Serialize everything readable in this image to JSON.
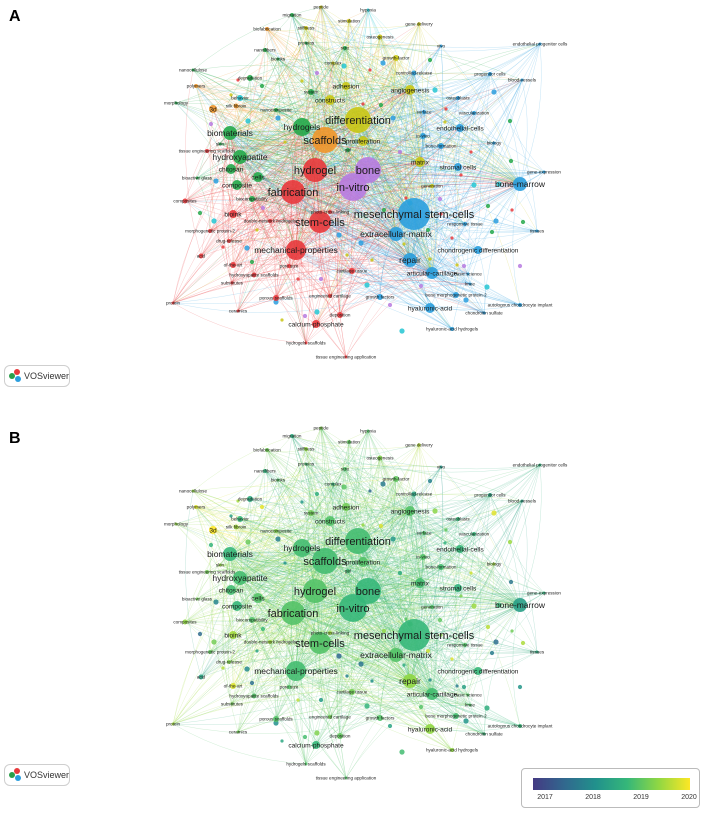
{
  "panel_a": {
    "letter": "A"
  },
  "panel_b": {
    "letter": "B"
  },
  "badge": {
    "label": "VOSviewer"
  },
  "legend": {
    "ticks": [
      "2017",
      "2018",
      "2019",
      "2020"
    ],
    "colormap": [
      "#443a83",
      "#31688e",
      "#21918c",
      "#35b779",
      "#90d743",
      "#fde725"
    ]
  },
  "cluster_colors": {
    "red": "#e8393c",
    "green": "#24a84a",
    "blue": "#2a9ede",
    "yellow": "#c9c614",
    "purple": "#b77be0",
    "cyan": "#23c5d2",
    "orange": "#f0962a"
  },
  "nodes": [
    {
      "label": "hypoxia",
      "c": "cyan",
      "yr": 2019.0
    },
    {
      "label": "peptide",
      "c": "yellow",
      "yr": 2019.3
    },
    {
      "label": "migration",
      "c": "green",
      "yr": 2018.6
    },
    {
      "label": "stimulation",
      "c": "yellow",
      "yr": 2019.1
    },
    {
      "label": "gene delivery",
      "c": "yellow",
      "yr": 2019.6
    },
    {
      "label": "stiffness",
      "c": "yellow",
      "yr": 2019.4
    },
    {
      "label": "biofabrication",
      "c": "orange",
      "yr": 2019.2
    },
    {
      "label": "osteogenesis",
      "c": "yellow",
      "yr": 2019.3
    },
    {
      "label": "vivo",
      "c": "blue",
      "yr": 2018.3
    },
    {
      "label": "proteins",
      "c": "green",
      "yr": 2018.9
    },
    {
      "label": "endothelial progenitor cells",
      "c": "blue",
      "yr": 2018.7
    },
    {
      "label": "size",
      "c": "green",
      "yr": 2019.0
    },
    {
      "label": "nanofibers",
      "c": "green",
      "yr": 2018.7
    },
    {
      "label": "bioinks",
      "c": "green",
      "yr": 2019.0
    },
    {
      "label": "complex",
      "c": "yellow",
      "yr": 2018.8
    },
    {
      "label": "growth-factor",
      "c": "yellow",
      "yr": 2019.1
    },
    {
      "label": "nanocellulose",
      "c": "green",
      "yr": 2019.4
    },
    {
      "label": "controlled-release",
      "c": "blue",
      "yr": 2018.5
    },
    {
      "label": "progenitor cells",
      "c": "blue",
      "yr": 2018.5
    },
    {
      "label": "polymers",
      "c": "orange",
      "yr": 2019.8
    },
    {
      "label": "degradation",
      "c": "green",
      "yr": 2018.6
    },
    {
      "label": "adhesion",
      "c": "yellow",
      "yr": 2019.2
    },
    {
      "label": "blood-vessels",
      "c": "blue",
      "yr": 2018.4
    },
    {
      "label": "system",
      "c": "green",
      "yr": 2019.2
    },
    {
      "label": "behavior",
      "c": "cyan",
      "yr": 2018.8
    },
    {
      "label": "angiogenesis",
      "c": "yellow",
      "yr": 2019.0
    },
    {
      "label": "osteoblasts",
      "c": "blue",
      "yr": 2018.8
    },
    {
      "label": "morphology",
      "c": "green",
      "yr": 2019.4
    },
    {
      "label": "3d",
      "c": "orange",
      "yr": 2020.0
    },
    {
      "label": "silk fibroin",
      "c": "orange",
      "yr": 2019.5
    },
    {
      "label": "nanocomposite",
      "c": "green",
      "yr": 2019.3
    },
    {
      "label": "constructs",
      "c": "yellow",
      "yr": 2019.0
    },
    {
      "label": "surface",
      "c": "blue",
      "yr": 2019.0
    },
    {
      "label": "vascularization",
      "c": "blue",
      "yr": 2018.8
    },
    {
      "label": "biomaterials",
      "c": "green",
      "yr": 2018.8
    },
    {
      "label": "hydrogels",
      "c": "green",
      "yr": 2018.9
    },
    {
      "label": "differentiation",
      "c": "yellow",
      "yr": 2018.9
    },
    {
      "label": "skin",
      "c": "green",
      "yr": 2019.4
    },
    {
      "label": "endothelial-cells",
      "c": "blue",
      "yr": 2018.8
    },
    {
      "label": "tissue engineering scaffolds",
      "c": "red",
      "yr": 2019.2
    },
    {
      "label": "proliferation",
      "c": "yellow",
      "yr": 2019.0
    },
    {
      "label": "scaffolds",
      "c": "orange",
      "yr": 2018.9
    },
    {
      "label": "in-vivo",
      "c": "blue",
      "yr": 2019.0
    },
    {
      "label": "hydroxyapatite",
      "c": "green",
      "yr": 2018.9
    },
    {
      "label": "bone-formation",
      "c": "blue",
      "yr": 2018.9
    },
    {
      "label": "biology",
      "c": "blue",
      "yr": 2019.5
    },
    {
      "label": "gel",
      "c": "green",
      "yr": 2018.9
    },
    {
      "label": "chitosan",
      "c": "green",
      "yr": 2018.9
    },
    {
      "label": "matrix",
      "c": "yellow",
      "yr": 2018.9
    },
    {
      "label": "hydrogel",
      "c": "red",
      "yr": 2019.0
    },
    {
      "label": "bone",
      "c": "purple",
      "yr": 2018.8
    },
    {
      "label": "stromal cells",
      "c": "blue",
      "yr": 2018.7
    },
    {
      "label": "gene-expression",
      "c": "blue",
      "yr": 2018.7
    },
    {
      "label": "cells",
      "c": "green",
      "yr": 2019.0
    },
    {
      "label": "bioactive glass",
      "c": "green",
      "yr": 2019.2
    },
    {
      "label": "in-vitro",
      "c": "purple",
      "yr": 2018.8
    },
    {
      "label": "bone-marrow",
      "c": "blue",
      "yr": 2018.4
    },
    {
      "label": "composite",
      "c": "green",
      "yr": 2018.8
    },
    {
      "label": "generation",
      "c": "yellow",
      "yr": 2019.0
    },
    {
      "label": "fabrication",
      "c": "red",
      "yr": 2019.0
    },
    {
      "label": "biocompatibility",
      "c": "green",
      "yr": 2019.0
    },
    {
      "label": "composites",
      "c": "red",
      "yr": 2019.4
    },
    {
      "label": "bioink",
      "c": "red",
      "yr": 2019.5
    },
    {
      "label": "mesenchymal stem-cells",
      "c": "blue",
      "yr": 2018.8
    },
    {
      "label": "photo-cross-linking",
      "c": "red",
      "yr": 2019.5
    },
    {
      "label": "double-network hydrogels",
      "c": "red",
      "yr": 2019.5
    },
    {
      "label": "responsive tissue",
      "c": "blue",
      "yr": 2019.0
    },
    {
      "label": "tissues",
      "c": "blue",
      "yr": 2018.6
    },
    {
      "label": "morphogenetic protein-2",
      "c": "red",
      "yr": 2019.1
    },
    {
      "label": "stem-cells",
      "c": "red",
      "yr": 2019.0
    },
    {
      "label": "extracellular-matrix",
      "c": "blue",
      "yr": 2019.0
    },
    {
      "label": "drug-release",
      "c": "red",
      "yr": 2019.3
    },
    {
      "label": "chondrogenic differentiation",
      "c": "blue",
      "yr": 2018.8
    },
    {
      "label": "acid",
      "c": "red",
      "yr": 2018.5
    },
    {
      "label": "mechanical-properties",
      "c": "red",
      "yr": 2018.9
    },
    {
      "label": "of-the-art",
      "c": "red",
      "yr": 2019.8
    },
    {
      "label": "repair",
      "c": "blue",
      "yr": 2019.4
    },
    {
      "label": "basic science",
      "c": "blue",
      "yr": 2019.0
    },
    {
      "label": "pore size",
      "c": "red",
      "yr": 2019.0
    },
    {
      "label": "hydroxyapatite scaffolds",
      "c": "red",
      "yr": 2019.0
    },
    {
      "label": "cartilage tissue",
      "c": "red",
      "yr": 2019.2
    },
    {
      "label": "articular-cartilage",
      "c": "blue",
      "yr": 2018.9
    },
    {
      "label": "knee",
      "c": "blue",
      "yr": 2019.0
    },
    {
      "label": "substitutes",
      "c": "red",
      "yr": 2019.2
    },
    {
      "label": "porous scaffolds",
      "c": "red",
      "yr": 2019.0
    },
    {
      "label": "engineered cartilage",
      "c": "red",
      "yr": 2019.2
    },
    {
      "label": "growth factors",
      "c": "blue",
      "yr": 2019.0
    },
    {
      "label": "bone morphogenetic protein-2",
      "c": "blue",
      "yr": 2018.9
    },
    {
      "label": "autologous chondrocyte implant",
      "c": "blue",
      "yr": 2018.8
    },
    {
      "label": "protein",
      "c": "red",
      "yr": 2019.5
    },
    {
      "label": "ceramics",
      "c": "red",
      "yr": 2019.2
    },
    {
      "label": "hyaluronic-acid",
      "c": "blue",
      "yr": 2019.4
    },
    {
      "label": "chondroitin sulfate",
      "c": "blue",
      "yr": 2018.8
    },
    {
      "label": "deposition",
      "c": "red",
      "yr": 2019.1
    },
    {
      "label": "calcium-phosphate",
      "c": "red",
      "yr": 2018.8
    },
    {
      "label": "hyaluronic-acid hydrogels",
      "c": "blue",
      "yr": 2019.4
    },
    {
      "label": "hydrogels scaffolds",
      "c": "red",
      "yr": 2019.0
    },
    {
      "label": "tissue engineering application",
      "c": "red",
      "yr": 2019.0
    }
  ]
}
